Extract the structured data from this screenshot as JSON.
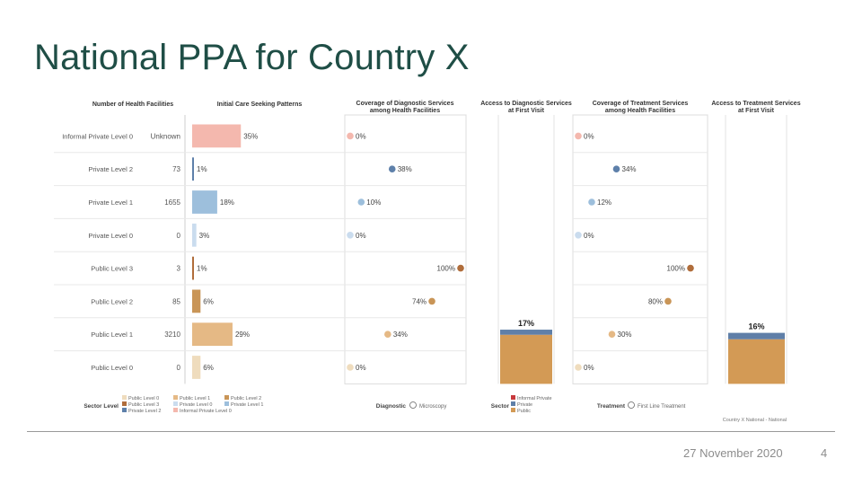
{
  "slide": {
    "title": "National PPA for Country X",
    "date": "27 November 2020",
    "page_number": "4",
    "footnote": "Country X National - National"
  },
  "colors": {
    "informal_private": "#f4b8ae",
    "private_l2": "#5e80aa",
    "private_l1": "#9dbfdc",
    "private_l0": "#cadcee",
    "public_l3": "#b06d3b",
    "public_l2": "#c99557",
    "public_l1": "#e5b985",
    "public_l0": "#efdcbd",
    "stack_public": "#d39a55",
    "stack_private": "#5f7fa8",
    "stack_informal": "#c8393d"
  },
  "chart_data": {
    "type": "table",
    "rows": [
      {
        "label": "Informal Private Level 0",
        "key": "informal_private"
      },
      {
        "label": "Private Level 2",
        "key": "private_l2"
      },
      {
        "label": "Private Level 1",
        "key": "private_l1"
      },
      {
        "label": "Private Level 0",
        "key": "private_l0"
      },
      {
        "label": "Public Level 3",
        "key": "public_l3"
      },
      {
        "label": "Public Level 2",
        "key": "public_l2"
      },
      {
        "label": "Public Level 1",
        "key": "public_l1"
      },
      {
        "label": "Public Level 0",
        "key": "public_l0"
      }
    ],
    "columns": {
      "facilities": {
        "header": "Number of Health Facilities",
        "values": [
          "Unknown",
          "73",
          "1655",
          "0",
          "3",
          "85",
          "3210",
          "0"
        ]
      },
      "care_seeking": {
        "header": "Initial Care Seeking Patterns",
        "values": [
          35,
          1,
          18,
          3,
          1,
          6,
          29,
          6
        ],
        "labels": [
          "35%",
          "1%",
          "18%",
          "3%",
          "1%",
          "6%",
          "29%",
          "6%"
        ],
        "max": 100
      },
      "diag_coverage": {
        "header_lines": [
          "Coverage of Diagnostic Services",
          "among Health Facilities"
        ],
        "values": [
          0,
          38,
          10,
          0,
          100,
          74,
          34,
          0
        ],
        "labels": [
          "0%",
          "38%",
          "10%",
          "0%",
          "100%",
          "74%",
          "34%",
          "0%"
        ]
      },
      "diag_access": {
        "header_lines": [
          "Access to Diagnostic Services",
          "at First Visit"
        ],
        "total_label": "17%",
        "stack": {
          "public": 15.4,
          "private": 1.6,
          "informal": 0
        }
      },
      "treat_coverage": {
        "header_lines": [
          "Coverage of Treatment Services",
          "among Health Facilities"
        ],
        "values": [
          0,
          34,
          12,
          0,
          100,
          80,
          30,
          0
        ],
        "labels": [
          "0%",
          "34%",
          "12%",
          "0%",
          "100%",
          "80%",
          "30%",
          "0%"
        ]
      },
      "treat_access": {
        "header_lines": [
          "Access to Treatment Services",
          "at First Visit"
        ],
        "total_label": "16%",
        "stack": {
          "public": 14.0,
          "private": 2.0,
          "informal": 0
        }
      }
    },
    "legends": {
      "sector_level": {
        "title": "Sector Level",
        "items": [
          [
            "Public Level 0",
            "public_l0"
          ],
          [
            "Public Level 3",
            "public_l3"
          ],
          [
            "Private Level 2",
            "private_l2"
          ],
          [
            "Public Level 1",
            "public_l1"
          ],
          [
            "Private Level 0",
            "private_l0"
          ],
          [
            "Informal Private Level 0",
            "informal_private"
          ],
          [
            "Public Level 2",
            "public_l2"
          ],
          [
            "Private Level 1",
            "private_l1"
          ]
        ]
      },
      "diagnostic": {
        "title": "Diagnostic",
        "item": "Microscopy"
      },
      "sector": {
        "title": "Sector",
        "items": [
          [
            "Informal Private",
            "stack_informal"
          ],
          [
            "Private",
            "stack_private"
          ],
          [
            "Public",
            "stack_public"
          ]
        ]
      },
      "treatment": {
        "title": "Treatment",
        "item": "First Line Treatment"
      }
    }
  }
}
